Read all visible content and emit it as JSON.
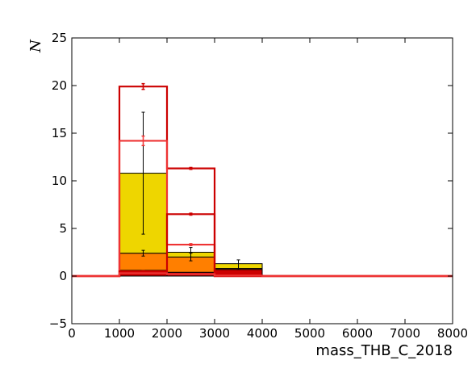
{
  "chart_data": {
    "type": "bar",
    "subtype": "stacked-histogram-with-step-overlays",
    "xlabel": "mass_THB_C_2018",
    "ylabel": "N",
    "xlim": [
      0,
      8000
    ],
    "ylim": [
      -5,
      25
    ],
    "x_ticks": [
      0,
      1000,
      2000,
      3000,
      4000,
      5000,
      6000,
      7000,
      8000
    ],
    "y_ticks": [
      -5,
      0,
      5,
      10,
      15,
      20,
      25
    ],
    "grid": false,
    "legend": "none",
    "bin_edges": [
      0,
      1000,
      2000,
      3000,
      4000,
      5000,
      6000,
      7000,
      8000
    ],
    "stacked_series": [
      {
        "color": "#cc0000",
        "values": [
          0,
          0.6,
          0.4,
          0.7,
          0.05,
          0,
          0,
          0
        ]
      },
      {
        "color": "#ff7f00",
        "values": [
          0,
          1.8,
          1.6,
          0.1,
          0,
          0,
          0,
          0
        ]
      },
      {
        "color": "#eed600",
        "values": [
          0,
          8.4,
          0.5,
          0.5,
          0,
          0,
          0,
          0
        ]
      }
    ],
    "stacked_errors": [
      {
        "x": 1500,
        "y": 10.8,
        "err": 6.4
      },
      {
        "x": 1500,
        "y": 2.4,
        "err": 0.3
      },
      {
        "x": 2500,
        "y": 2.5,
        "err": 0.5
      },
      {
        "x": 2500,
        "y": 2.0,
        "err": 0.4
      },
      {
        "x": 3500,
        "y": 1.2,
        "err": 0.5
      }
    ],
    "step_series": [
      {
        "color": "#cc0000",
        "values": [
          0,
          19.9,
          11.3,
          0,
          0,
          0,
          0,
          0
        ],
        "errors": [
          0,
          0.3,
          0.1,
          0,
          0,
          0,
          0,
          0
        ]
      },
      {
        "color": "#ee3333",
        "values": [
          0,
          14.2,
          3.3,
          0,
          0,
          0,
          0,
          0
        ],
        "errors": [
          0,
          0.5,
          0.1,
          0,
          0,
          0,
          0,
          0
        ]
      },
      {
        "color": "#cc0000",
        "values": [
          0,
          0.5,
          6.5,
          0,
          0,
          0,
          0,
          0
        ],
        "errors": [
          0,
          0.05,
          0.1,
          0,
          0,
          0,
          0,
          0
        ]
      },
      {
        "color": "#ee3333",
        "values": [
          0,
          0.3,
          0.2,
          0.05,
          0,
          0,
          0,
          0
        ],
        "errors": [
          0,
          0,
          0,
          0,
          0,
          0,
          0,
          0
        ]
      }
    ]
  }
}
